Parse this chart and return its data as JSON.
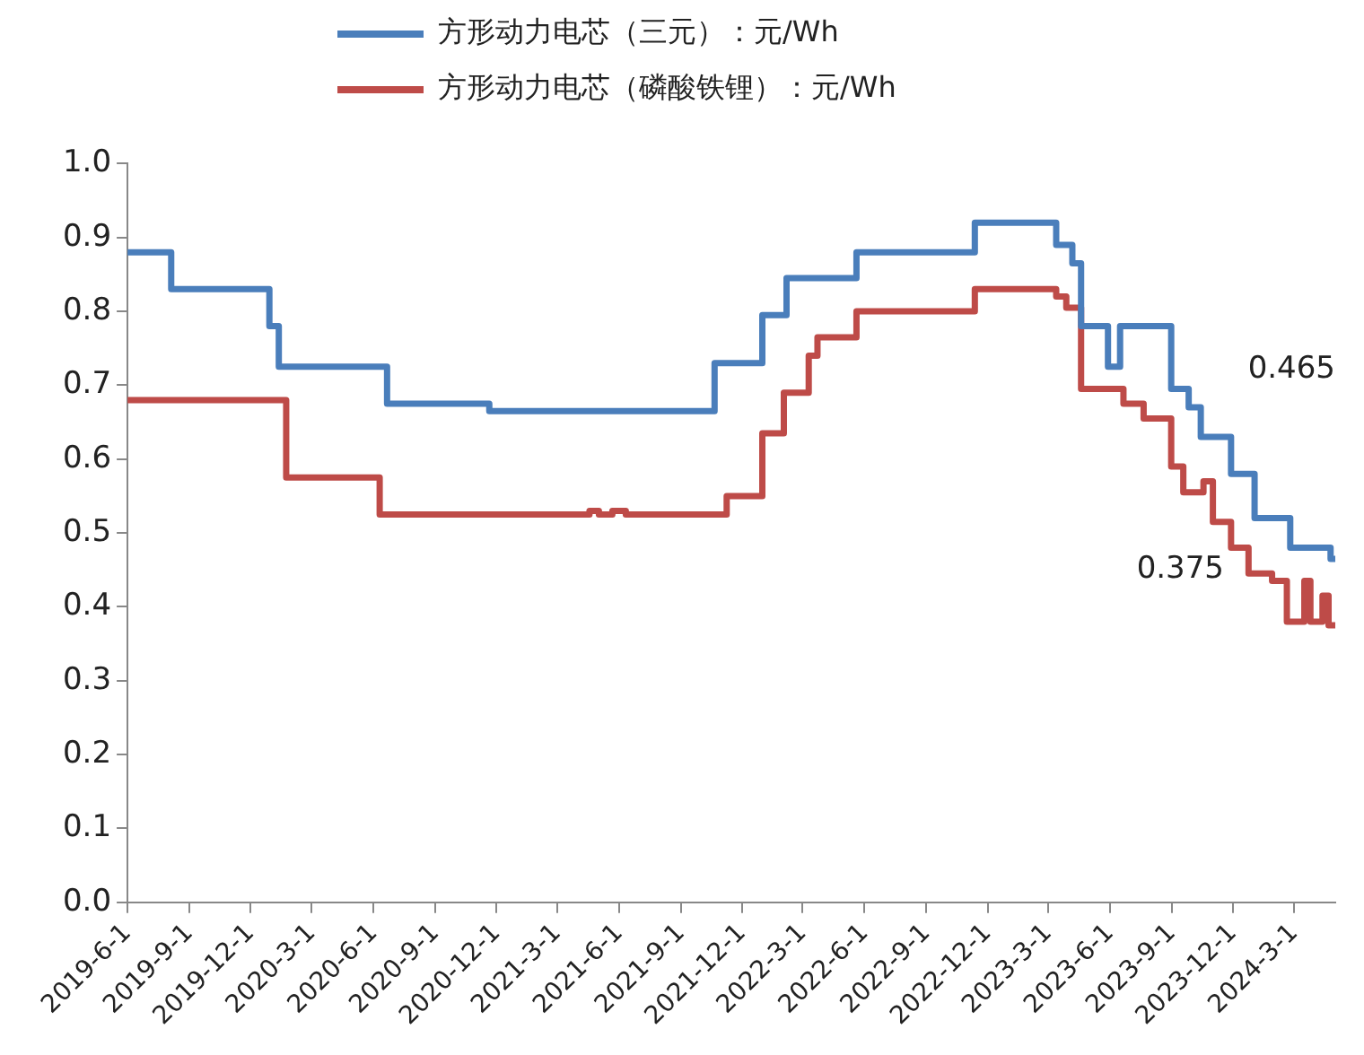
{
  "chart_data": {
    "type": "step",
    "legend": "top",
    "grid": false,
    "marker": "none",
    "line_style": "solid",
    "xlim": [
      "2019-06-01",
      "2024-05-01"
    ],
    "xticks": [
      {
        "value": "2019-06-01",
        "label": "2019-6-1"
      },
      {
        "value": "2019-09-01",
        "label": "2019-9-1"
      },
      {
        "value": "2019-12-01",
        "label": "2019-12-1"
      },
      {
        "value": "2020-03-01",
        "label": "2020-3-1"
      },
      {
        "value": "2020-06-01",
        "label": "2020-6-1"
      },
      {
        "value": "2020-09-01",
        "label": "2020-9-1"
      },
      {
        "value": "2020-12-01",
        "label": "2020-12-1"
      },
      {
        "value": "2021-03-01",
        "label": "2021-3-1"
      },
      {
        "value": "2021-06-01",
        "label": "2021-6-1"
      },
      {
        "value": "2021-09-01",
        "label": "2021-9-1"
      },
      {
        "value": "2021-12-01",
        "label": "2021-12-1"
      },
      {
        "value": "2022-03-01",
        "label": "2022-3-1"
      },
      {
        "value": "2022-06-01",
        "label": "2022-6-1"
      },
      {
        "value": "2022-09-01",
        "label": "2022-9-1"
      },
      {
        "value": "2022-12-01",
        "label": "2022-12-1"
      },
      {
        "value": "2023-03-01",
        "label": "2023-3-1"
      },
      {
        "value": "2023-06-01",
        "label": "2023-6-1"
      },
      {
        "value": "2023-09-01",
        "label": "2023-9-1"
      },
      {
        "value": "2023-12-01",
        "label": "2023-12-1"
      },
      {
        "value": "2024-03-01",
        "label": "2024-3-1"
      }
    ],
    "ylim": [
      0,
      1
    ],
    "yticks": [
      {
        "value": 0,
        "label": "0.0"
      },
      {
        "value": 0.1,
        "label": "0.1"
      },
      {
        "value": 0.2,
        "label": "0.2"
      },
      {
        "value": 0.3,
        "label": "0.3"
      },
      {
        "value": 0.4,
        "label": "0.4"
      },
      {
        "value": 0.5,
        "label": "0.5"
      },
      {
        "value": 0.6,
        "label": "0.6"
      },
      {
        "value": 0.7,
        "label": "0.7"
      },
      {
        "value": 0.8,
        "label": "0.8"
      },
      {
        "value": 0.9,
        "label": "0.9"
      },
      {
        "value": 1,
        "label": "1.0"
      }
    ],
    "series": [
      {
        "name": "方形动力电芯（三元）：元/Wh",
        "color": "#4a7ebb",
        "x": [
          "2019-06-01",
          "2019-08-05",
          "2019-12-29",
          "2020-01-12",
          "2020-06-21",
          "2020-11-20",
          "2021-10-21",
          "2021-12-31",
          "2022-02-05",
          "2022-05-20",
          "2022-11-12",
          "2023-03-13",
          "2023-04-06",
          "2023-04-19",
          "2023-05-29",
          "2023-06-16",
          "2023-08-31",
          "2023-09-26",
          "2023-10-14",
          "2023-11-28",
          "2024-01-02",
          "2024-02-24",
          "2024-04-24",
          "2024-05-01"
        ],
        "values": [
          0.88,
          0.83,
          0.78,
          0.725,
          0.675,
          0.665,
          0.73,
          0.795,
          0.845,
          0.88,
          0.92,
          0.89,
          0.865,
          0.78,
          0.725,
          0.78,
          0.695,
          0.67,
          0.63,
          0.58,
          0.52,
          0.48,
          0.465,
          0.465
        ]
      },
      {
        "name": "方形动力电芯（磷酸铁锂）：元/Wh",
        "color": "#be4b48",
        "x": [
          "2019-06-01",
          "2020-01-23",
          "2020-06-10",
          "2021-04-18",
          "2021-05-02",
          "2021-05-22",
          "2021-06-11",
          "2021-11-08",
          "2021-12-31",
          "2022-02-01",
          "2022-03-10",
          "2022-03-23",
          "2022-05-20",
          "2022-11-12",
          "2023-03-13",
          "2023-03-28",
          "2023-04-19",
          "2023-06-21",
          "2023-07-21",
          "2023-08-31",
          "2023-09-18",
          "2023-10-18",
          "2023-11-01",
          "2023-11-28",
          "2023-12-24",
          "2024-01-28",
          "2024-02-19",
          "2024-03-16",
          "2024-03-25",
          "2024-04-12",
          "2024-04-21",
          "2024-05-01"
        ],
        "values": [
          0.68,
          0.575,
          0.525,
          0.53,
          0.525,
          0.53,
          0.525,
          0.55,
          0.635,
          0.69,
          0.74,
          0.765,
          0.8,
          0.83,
          0.82,
          0.805,
          0.695,
          0.675,
          0.655,
          0.59,
          0.555,
          0.57,
          0.515,
          0.48,
          0.445,
          0.435,
          0.38,
          0.435,
          0.38,
          0.415,
          0.375,
          0.375
        ]
      }
    ],
    "annotations": [
      "0.465",
      "0.375"
    ]
  }
}
